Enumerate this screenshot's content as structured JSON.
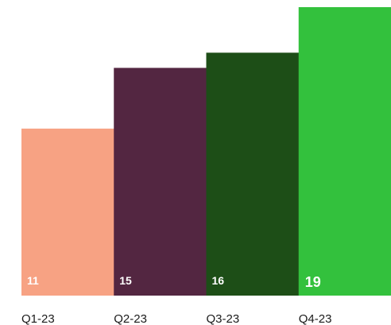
{
  "chart_data": {
    "type": "bar",
    "categories": [
      "Q1-23",
      "Q2-23",
      "Q3-23",
      "Q4-23"
    ],
    "values": [
      11,
      15,
      16,
      19
    ],
    "colors": [
      "#f7a283",
      "#532641",
      "#1d4e17",
      "#33c13d"
    ],
    "data_labels": [
      "11",
      "15",
      "16",
      "19"
    ],
    "highlight_index": 3,
    "ylim": [
      0,
      19
    ],
    "grid": false,
    "legend": "none",
    "title": "",
    "xlabel": "",
    "ylabel": ""
  }
}
